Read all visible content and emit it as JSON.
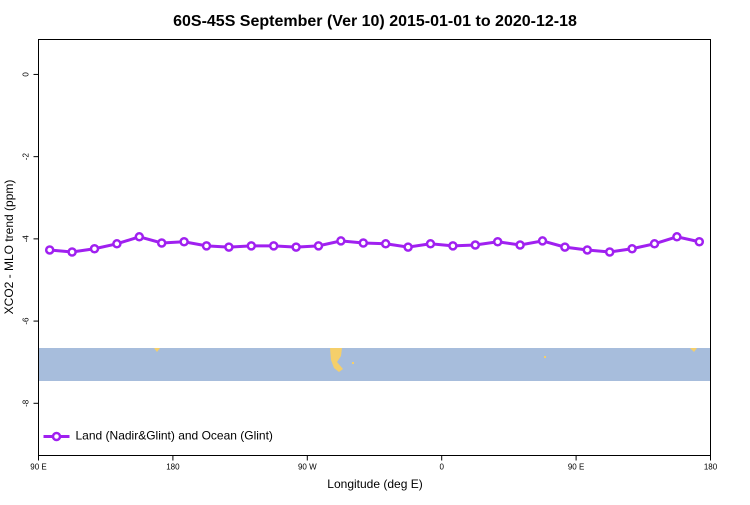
{
  "chart_data": {
    "type": "line",
    "title": "60S-45S September (Ver 10)   2015-01-01 to 2020-12-18",
    "x_label": "Longitude (deg E)",
    "y_label": "XCO2 - MLO trend (ppm)",
    "x": [
      97.5,
      112.5,
      127.5,
      142.5,
      157.5,
      172.5,
      187.5,
      202.5,
      217.5,
      232.5,
      247.5,
      262.5,
      277.5,
      292.5,
      307.5,
      322.5,
      337.5,
      352.5,
      367.5,
      382.5,
      397.5,
      412.5,
      427.5,
      442.5,
      457.5,
      472.5,
      487.5,
      502.5,
      517.5,
      532.5
    ],
    "series": [
      {
        "name": "Land (Nadir&Glint) and Ocean (Glint)",
        "color": "#a020f0",
        "values": [
          -4.27,
          -4.32,
          -4.24,
          -4.12,
          -3.95,
          -4.1,
          -4.07,
          -4.17,
          -4.2,
          -4.17,
          -4.17,
          -4.2,
          -4.17,
          -4.05,
          -4.1,
          -4.12,
          -4.2,
          -4.12,
          -4.17,
          -4.15,
          -4.07,
          -4.15,
          -4.05,
          -4.2,
          -4.27,
          -4.32,
          -4.24,
          -4.12,
          -3.95,
          -4.07
        ]
      }
    ],
    "xlim": [
      90,
      540
    ],
    "xticks": [
      {
        "value": 90,
        "label": "90 E"
      },
      180,
      {
        "value": 270,
        "label": "90 W"
      },
      {
        "value": 360,
        "label": "0"
      },
      {
        "value": 450,
        "label": "90 E"
      },
      {
        "value": 540,
        "label": "180"
      }
    ],
    "ylim": [
      -9.27,
      0.85
    ],
    "yticks": [
      0,
      -2,
      -4,
      -6,
      -8
    ],
    "legend": "bottom-left"
  }
}
